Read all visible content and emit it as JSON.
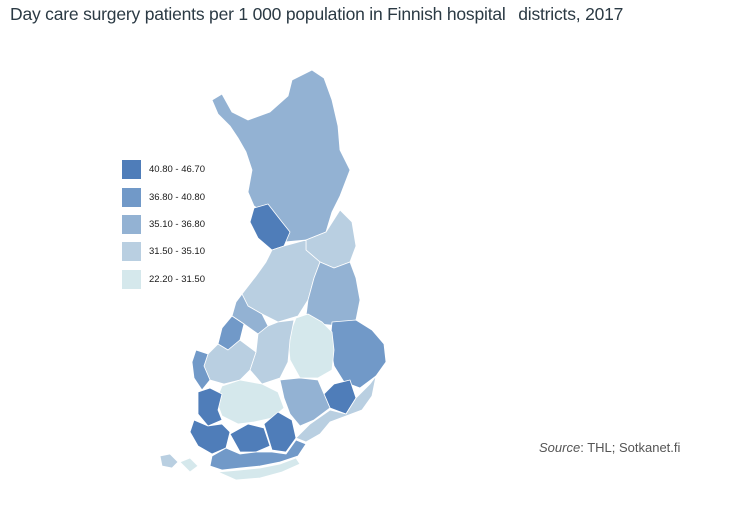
{
  "title_part1": "Day care surgery patients per 1 000 population in Finnish hospital",
  "title_part2": "districts, 2017",
  "legend": [
    {
      "label": "40.80 - 46.70",
      "color": "#4f7db9"
    },
    {
      "label": "36.80 - 40.80",
      "color": "#7199c8"
    },
    {
      "label": "35.10 - 36.80",
      "color": "#93b2d3"
    },
    {
      "label": "31.50 - 35.10",
      "color": "#b9cfe1"
    },
    {
      "label": "22.20 - 31.50",
      "color": "#d5e8ec"
    }
  ],
  "source": {
    "label": "Source",
    "text": ": THL; Sotkanet.fi"
  }
}
